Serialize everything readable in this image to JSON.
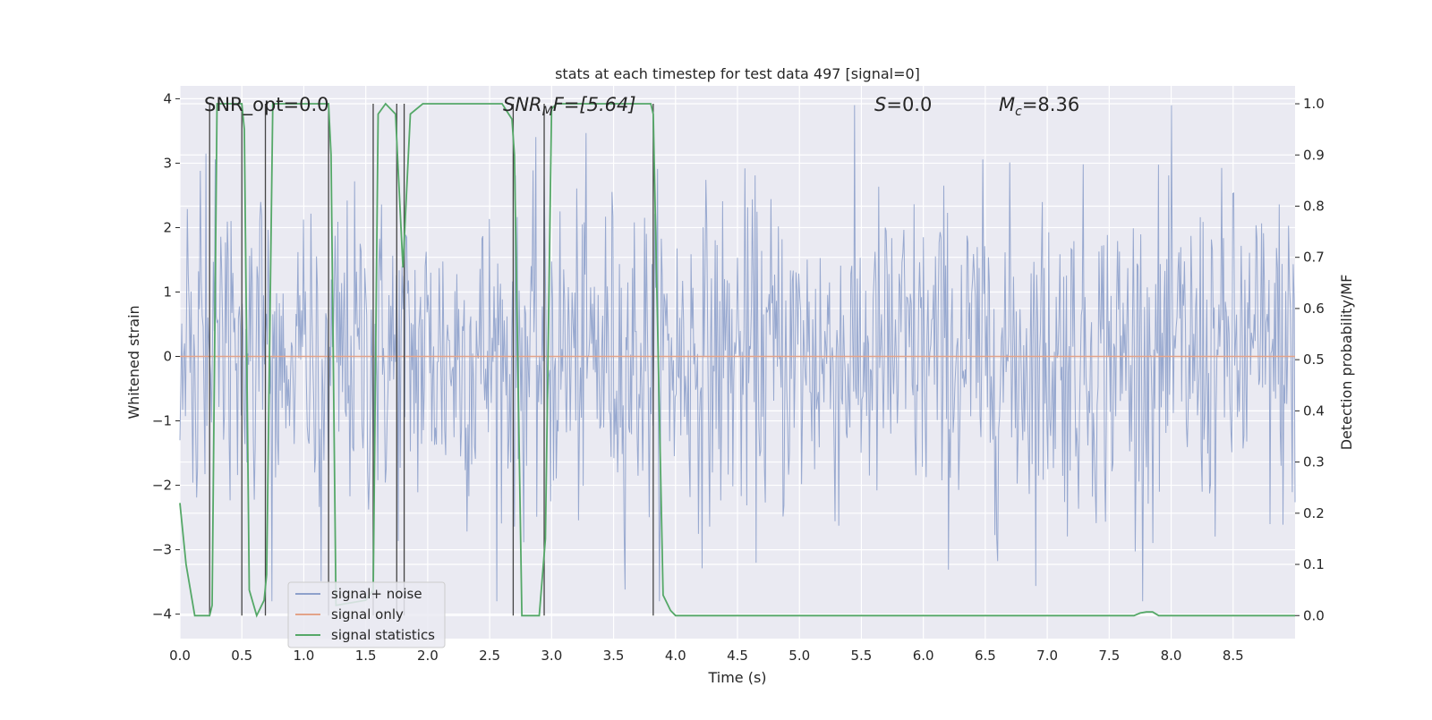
{
  "chart_data": {
    "type": "line",
    "title": "stats at each timestep for test data 497 [signal=0]",
    "xlabel": "Time (s)",
    "ylabel_left": "Whitened strain",
    "ylabel_right": "Detection probability/MF",
    "xlim": [
      0.0,
      9.0
    ],
    "ylim_left": [
      -4.38,
      4.2
    ],
    "ylim_right": [
      -0.045,
      1.035
    ],
    "x_ticks": [
      "0.0",
      "0.5",
      "1.0",
      "1.5",
      "2.0",
      "2.5",
      "3.0",
      "3.5",
      "4.0",
      "4.5",
      "5.0",
      "5.5",
      "6.0",
      "6.5",
      "7.0",
      "7.5",
      "8.0",
      "8.5"
    ],
    "y_left_ticks": [
      "4",
      "3",
      "2",
      "1",
      "0",
      "−1",
      "−2",
      "−3",
      "−4"
    ],
    "y_right_ticks": [
      "1.0",
      "0.9",
      "0.8",
      "0.7",
      "0.6",
      "0.5",
      "0.4",
      "0.3",
      "0.2",
      "0.1",
      "0.0"
    ],
    "grid": true,
    "legend_position": "lower-left",
    "annotations": {
      "snr_opt": "SNR_opt=0.0",
      "snr_mf_base": "SNR",
      "snr_mf_sub": "M",
      "snr_mf_rest": "F=[5.64]",
      "s_var": "S",
      "s_rest": "=0.0",
      "mc_var": "M",
      "mc_sub": "c",
      "mc_rest": "=8.36"
    },
    "series": [
      {
        "name": "signal+ noise",
        "color": "#8ea1cb",
        "description_values": "whitened strain noise, approx. Gaussian, peaks between -3.8 and 3.9",
        "amplitude_range": [
          -3.8,
          3.9
        ]
      },
      {
        "name": "signal only",
        "color": "#e3a389",
        "x": [
          0.0,
          9.0
        ],
        "y": [
          0.0,
          0.0
        ]
      },
      {
        "name": "signal statistics",
        "color": "#55a868",
        "axis": "right",
        "x": [
          0.0,
          0.05,
          0.12,
          0.24,
          0.26,
          0.3,
          0.5,
          0.52,
          0.56,
          0.62,
          0.68,
          0.7,
          0.75,
          1.2,
          1.22,
          1.26,
          1.5,
          1.56,
          1.6,
          1.66,
          1.74,
          1.8,
          1.86,
          1.96,
          2.6,
          2.68,
          2.7,
          2.76,
          2.9,
          2.95,
          3.0,
          3.04,
          3.8,
          3.82,
          3.9,
          3.96,
          4.0,
          7.7,
          7.75,
          7.8,
          7.85,
          7.9,
          9.0
        ],
        "y": [
          0.22,
          0.1,
          0.0,
          0.0,
          0.02,
          1.0,
          1.0,
          0.95,
          0.05,
          0.0,
          0.03,
          0.08,
          1.0,
          1.0,
          0.9,
          0.02,
          0.03,
          0.05,
          0.98,
          1.0,
          0.98,
          0.68,
          0.98,
          1.0,
          1.0,
          0.97,
          0.9,
          0.0,
          0.0,
          0.15,
          0.99,
          1.0,
          1.0,
          0.98,
          0.04,
          0.01,
          0.0,
          0.0,
          0.005,
          0.007,
          0.007,
          0.0,
          0.0
        ]
      }
    ],
    "vertical_markers_x": [
      0.24,
      0.5,
      0.69,
      1.2,
      1.56,
      1.75,
      1.81,
      2.69,
      2.94,
      3.82
    ]
  }
}
